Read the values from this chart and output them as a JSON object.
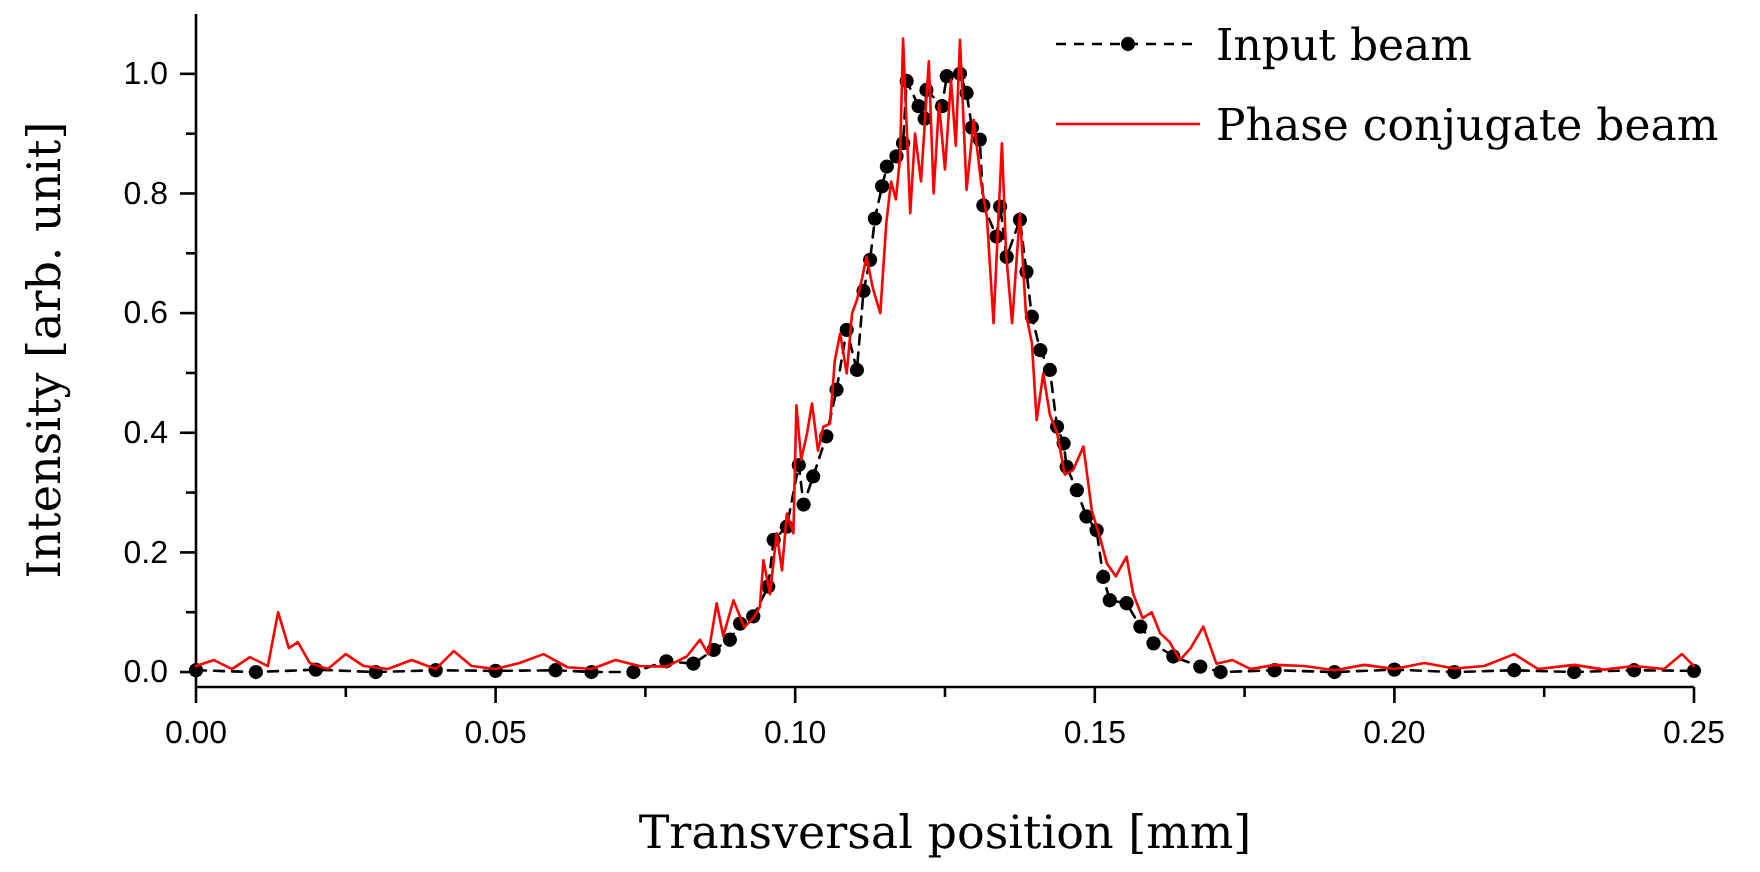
{
  "chart_data": {
    "type": "line",
    "xlabel": "Transversal position [mm]",
    "ylabel": "Intensity [arb. unit]",
    "xlim": [
      0,
      0.25
    ],
    "ylim": [
      -0.025,
      1.1
    ],
    "xticks": [
      {
        "value": 0,
        "label": "0.00"
      },
      {
        "value": 0.025,
        "label": null
      },
      {
        "value": 0.05,
        "label": "0.05"
      },
      {
        "value": 0.075,
        "label": null
      },
      {
        "value": 0.1,
        "label": "0.10"
      },
      {
        "value": 0.125,
        "label": null
      },
      {
        "value": 0.15,
        "label": "0.15"
      },
      {
        "value": 0.175,
        "label": null
      },
      {
        "value": 0.2,
        "label": "0.20"
      },
      {
        "value": 0.225,
        "label": null
      },
      {
        "value": 0.25,
        "label": "0.25"
      }
    ],
    "yticks": [
      {
        "value": 0,
        "label": "0.0"
      },
      {
        "value": 0.1,
        "label": null
      },
      {
        "value": 0.2,
        "label": "0.2"
      },
      {
        "value": 0.3,
        "label": null
      },
      {
        "value": 0.4,
        "label": "0.4"
      },
      {
        "value": 0.5,
        "label": null
      },
      {
        "value": 0.6,
        "label": "0.6"
      },
      {
        "value": 0.7,
        "label": null
      },
      {
        "value": 0.8,
        "label": "0.8"
      },
      {
        "value": 0.9,
        "label": null
      },
      {
        "value": 1,
        "label": "1.0"
      }
    ],
    "grid": false,
    "legend": "top right",
    "series": [
      {
        "name": "Input beam",
        "color": "#000000",
        "marker": "circle",
        "line_style": "dashed",
        "x": [
          0,
          0.01,
          0.02,
          0.03,
          0.04,
          0.05,
          0.06,
          0.066,
          0.073,
          0.0785,
          0.083,
          0.0864,
          0.0891,
          0.0908,
          0.093,
          0.0955,
          0.0964,
          0.0986,
          0.1006,
          0.1014,
          0.103,
          0.1052,
          0.1069,
          0.1086,
          0.1103,
          0.1114,
          0.1125,
          0.1133,
          0.1145,
          0.1153,
          0.1169,
          0.118,
          0.1186,
          0.1206,
          0.1216,
          0.1219,
          0.1245,
          0.1253,
          0.1275,
          0.1286,
          0.1295,
          0.1308,
          0.1314,
          0.1336,
          0.1342,
          0.1353,
          0.1375,
          0.1386,
          0.1395,
          0.1409,
          0.1425,
          0.1437,
          0.1448,
          0.1453,
          0.147,
          0.1486,
          0.1503,
          0.1514,
          0.1525,
          0.1553,
          0.1576,
          0.1598,
          0.1631,
          0.1676,
          0.171,
          0.18,
          0.19,
          0.2,
          0.21,
          0.22,
          0.23,
          0.24,
          0.25
        ],
        "values": [
          0.003,
          0,
          0.004,
          0,
          0.003,
          0.002,
          0.003,
          0,
          0,
          0.018,
          0.014,
          0.037,
          0.054,
          0.081,
          0.093,
          0.143,
          0.221,
          0.243,
          0.346,
          0.28,
          0.327,
          0.394,
          0.472,
          0.572,
          0.505,
          0.637,
          0.689,
          0.758,
          0.812,
          0.845,
          0.862,
          0.884,
          0.988,
          0.946,
          0.925,
          0.973,
          0.946,
          0.996,
          1,
          0.968,
          0.91,
          0.89,
          0.78,
          0.728,
          0.778,
          0.694,
          0.756,
          0.669,
          0.594,
          0.538,
          0.505,
          0.41,
          0.382,
          0.343,
          0.304,
          0.26,
          0.237,
          0.159,
          0.12,
          0.115,
          0.076,
          0.048,
          0.026,
          0.009,
          0,
          0.003,
          0,
          0.004,
          0,
          0.003,
          0,
          0.003,
          0.002
        ]
      },
      {
        "name": "Phase conjugate beam",
        "color": "#ff0000",
        "marker": "none",
        "line_style": "solid",
        "x": [
          0,
          0.003,
          0.006,
          0.009,
          0.012,
          0.0137,
          0.0155,
          0.017,
          0.019,
          0.022,
          0.025,
          0.028,
          0.032,
          0.036,
          0.04,
          0.043,
          0.046,
          0.05,
          0.054,
          0.058,
          0.062,
          0.066,
          0.07,
          0.074,
          0.0785,
          0.0819,
          0.0841,
          0.0855,
          0.0869,
          0.088,
          0.0897,
          0.0915,
          0.093,
          0.0941,
          0.0947,
          0.0958,
          0.0969,
          0.0978,
          0.0986,
          0.0997,
          0.1002,
          0.101,
          0.102,
          0.1028,
          0.1038,
          0.1047,
          0.1058,
          0.1066,
          0.1075,
          0.1086,
          0.1095,
          0.1103,
          0.1112,
          0.1119,
          0.113,
          0.1142,
          0.1152,
          0.116,
          0.1168,
          0.1175,
          0.118,
          0.1192,
          0.12,
          0.121,
          0.1223,
          0.1231,
          0.124,
          0.125,
          0.126,
          0.1268,
          0.1275,
          0.1286,
          0.1298,
          0.131,
          0.132,
          0.1331,
          0.1345,
          0.1352,
          0.1362,
          0.1375,
          0.1385,
          0.1395,
          0.1403,
          0.1414,
          0.1425,
          0.1437,
          0.145,
          0.1464,
          0.1481,
          0.1495,
          0.151,
          0.152,
          0.1535,
          0.1553,
          0.1564,
          0.158,
          0.1595,
          0.1609,
          0.1625,
          0.1642,
          0.166,
          0.1681,
          0.1703,
          0.173,
          0.176,
          0.18,
          0.185,
          0.19,
          0.195,
          0.2,
          0.205,
          0.21,
          0.215,
          0.22,
          0.224,
          0.23,
          0.235,
          0.24,
          0.245,
          0.248,
          0.25
        ],
        "values": [
          0.01,
          0.02,
          0.005,
          0.025,
          0.01,
          0.1,
          0.04,
          0.05,
          0.015,
          0.005,
          0.03,
          0.01,
          0.005,
          0.02,
          0.005,
          0.035,
          0.01,
          0.005,
          0.015,
          0.03,
          0.008,
          0.005,
          0.02,
          0.01,
          0.009,
          0.026,
          0.054,
          0.03,
          0.115,
          0.06,
          0.12,
          0.075,
          0.09,
          0.109,
          0.187,
          0.13,
          0.232,
          0.17,
          0.265,
          0.232,
          0.446,
          0.355,
          0.4,
          0.449,
          0.37,
          0.41,
          0.415,
          0.52,
          0.566,
          0.499,
          0.6,
          0.622,
          0.66,
          0.694,
          0.64,
          0.6,
          0.75,
          0.82,
          0.79,
          0.86,
          1.059,
          0.767,
          0.9,
          0.82,
          1.021,
          0.8,
          0.95,
          0.84,
          0.99,
          0.88,
          1.057,
          0.806,
          0.923,
          0.82,
          0.76,
          0.583,
          0.884,
          0.7,
          0.583,
          0.767,
          0.6,
          0.55,
          0.421,
          0.499,
          0.43,
          0.4,
          0.33,
          0.338,
          0.377,
          0.27,
          0.22,
          0.182,
          0.16,
          0.193,
          0.131,
          0.09,
          0.1,
          0.065,
          0.05,
          0.02,
          0.04,
          0.076,
          0.014,
          0.02,
          0.005,
          0.012,
          0.01,
          0.003,
          0.012,
          0.005,
          0.015,
          0.006,
          0.01,
          0.03,
          0.005,
          0.012,
          0.004,
          0.01,
          0.005,
          0.03,
          0.01
        ]
      }
    ]
  }
}
